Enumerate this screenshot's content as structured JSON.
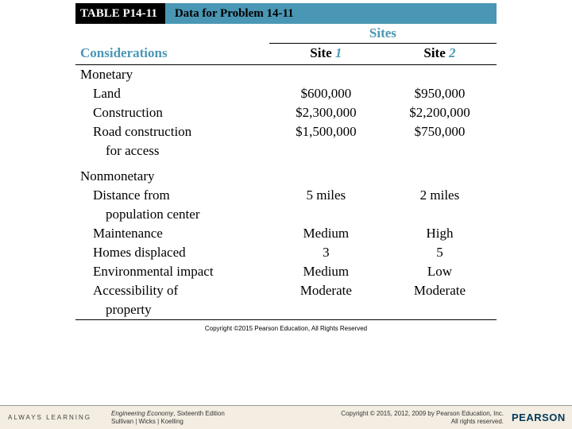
{
  "table": {
    "label": "TABLE P14-11",
    "caption": "Data for Problem 14-11",
    "sites_header": "Sites",
    "columns": {
      "considerations": "Considerations",
      "site1_prefix": "Site ",
      "site1_num": "1",
      "site2_prefix": "Site ",
      "site2_num": "2"
    },
    "sections": {
      "monetary": {
        "heading": "Monetary",
        "rows": [
          {
            "label": "Land",
            "s1": "$600,000",
            "s2": "$950,000"
          },
          {
            "label": "Construction",
            "s1": "$2,300,000",
            "s2": "$2,200,000"
          },
          {
            "label_a": "Road construction",
            "label_b": "for access",
            "s1": "$1,500,000",
            "s2": "$750,000"
          }
        ]
      },
      "nonmonetary": {
        "heading": "Nonmonetary",
        "rows": [
          {
            "label_a": "Distance from",
            "label_b": "population center",
            "s1": "5 miles",
            "s2": "2 miles"
          },
          {
            "label": "Maintenance",
            "s1": "Medium",
            "s2": "High"
          },
          {
            "label": "Homes displaced",
            "s1": "3",
            "s2": "5"
          },
          {
            "label": "Environmental impact",
            "s1": "Medium",
            "s2": "Low"
          },
          {
            "label_a": "Accessibility of",
            "label_b": "property",
            "s1": "Moderate",
            "s2": "Moderate"
          }
        ]
      }
    },
    "inner_copyright": "Copyright ©2015 Pearson Education, All Rights Reserved"
  },
  "footer": {
    "always": "ALWAYS LEARNING",
    "book_title_italic": "Engineering Economy",
    "book_title_rest": ", Sixteenth Edition",
    "authors": "Sullivan | Wicks | Koelling",
    "copyright_a": "Copyright © 2015, 2012, 2009 by Pearson Education, Inc.",
    "copyright_b": "All rights reserved.",
    "brand": "PEARSON"
  },
  "colors": {
    "accent": "#4a97b5",
    "title_bg_dark": "#000000",
    "footer_bg": "#f4ede1",
    "pearson": "#003a5d"
  }
}
